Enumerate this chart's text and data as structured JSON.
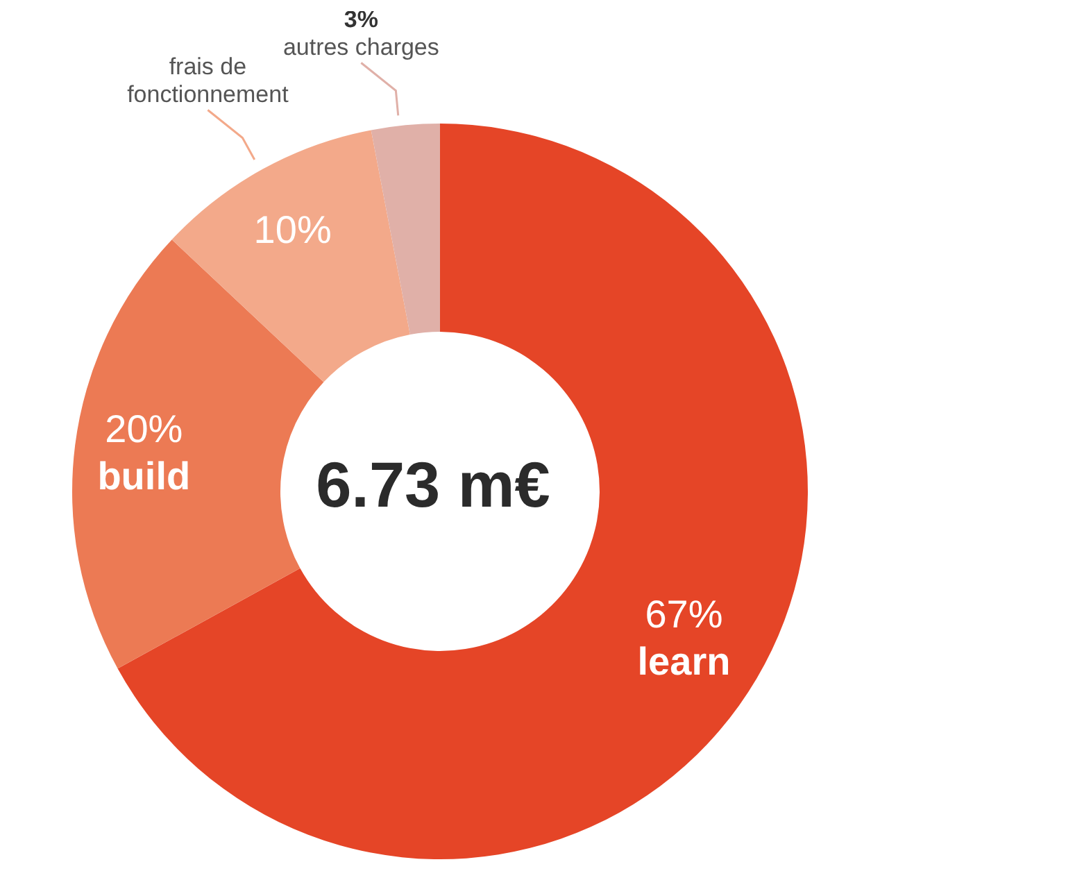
{
  "chart_data": {
    "type": "donut",
    "categories": [
      "learn",
      "build",
      "frais de fonctionnement",
      "autres charges"
    ],
    "values": [
      67,
      20,
      10,
      3
    ],
    "value_labels": [
      "67%",
      "20%",
      "10%",
      "3%"
    ],
    "colors": [
      "#e54527",
      "#ec7a54",
      "#f3a98a",
      "#e0b0a8"
    ],
    "annotations": [
      "6.73 m€"
    ],
    "legend": false
  }
}
